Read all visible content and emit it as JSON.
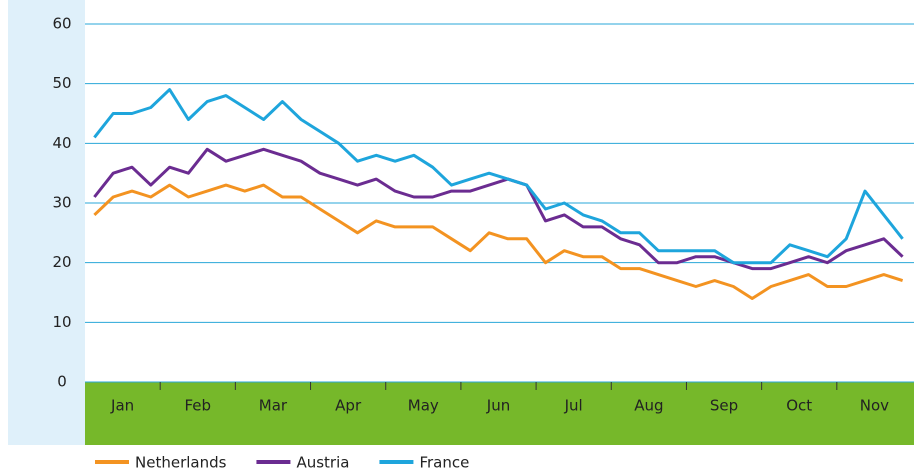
{
  "chart_data": {
    "type": "line",
    "categories": [
      "Jan",
      null,
      null,
      null,
      "Feb",
      null,
      null,
      null,
      "Mar",
      null,
      null,
      null,
      "Apr",
      null,
      null,
      null,
      "May",
      null,
      null,
      null,
      "Jun",
      null,
      null,
      null,
      "Jul",
      null,
      null,
      null,
      "Aug",
      null,
      null,
      null,
      "Sep",
      null,
      null,
      null,
      "Oct",
      null,
      null,
      null,
      "Nov",
      null,
      null,
      null
    ],
    "series": [
      {
        "name": "Netherlands",
        "color": "#f39321",
        "values": [
          28,
          31,
          32,
          31,
          33,
          31,
          32,
          33,
          32,
          33,
          31,
          31,
          29,
          27,
          25,
          27,
          26,
          26,
          26,
          24,
          22,
          25,
          24,
          24,
          20,
          22,
          21,
          21,
          19,
          19,
          18,
          17,
          16,
          17,
          16,
          14,
          16,
          17,
          18,
          16,
          16,
          17,
          18,
          17
        ]
      },
      {
        "name": "Austria",
        "color": "#6b2c91",
        "values": [
          31,
          35,
          36,
          33,
          36,
          35,
          39,
          37,
          38,
          39,
          38,
          37,
          35,
          34,
          33,
          34,
          32,
          31,
          31,
          32,
          32,
          33,
          34,
          33,
          27,
          28,
          26,
          26,
          24,
          23,
          20,
          20,
          21,
          21,
          20,
          19,
          19,
          20,
          21,
          20,
          22,
          23,
          24,
          21
        ]
      },
      {
        "name": "France",
        "color": "#1ea5dc",
        "values": [
          41,
          45,
          45,
          46,
          49,
          44,
          47,
          48,
          46,
          44,
          47,
          44,
          42,
          40,
          37,
          38,
          37,
          38,
          36,
          33,
          34,
          35,
          34,
          33,
          29,
          30,
          28,
          27,
          25,
          25,
          22,
          22,
          22,
          22,
          20,
          20,
          20,
          23,
          22,
          21,
          24,
          32,
          28,
          24
        ]
      }
    ],
    "ylim": [
      0,
      60
    ],
    "yticks": [
      0,
      10,
      20,
      30,
      40,
      50,
      60
    ],
    "grid": true
  }
}
